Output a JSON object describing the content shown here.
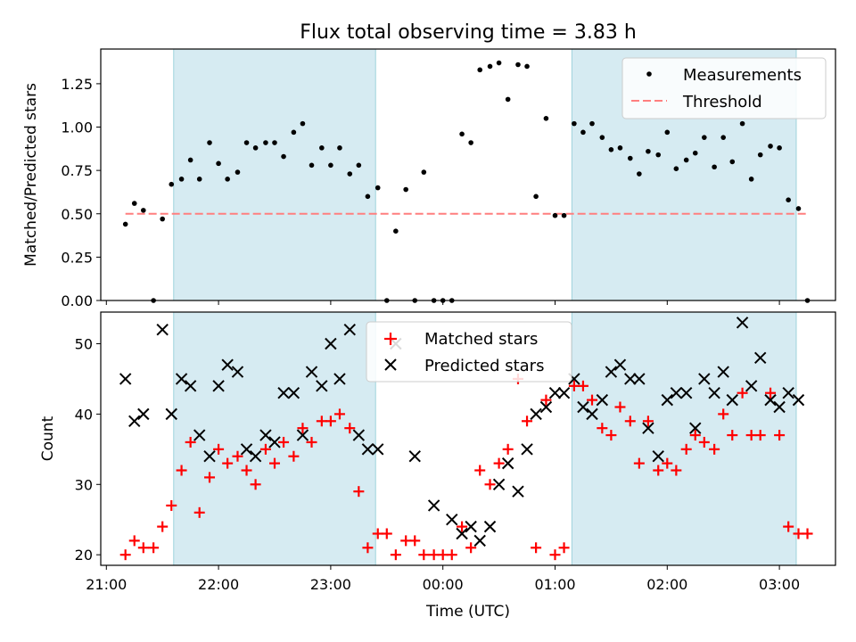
{
  "chart_data": [
    {
      "type": "scatter",
      "title": "Flux total observing time = 3.83 h",
      "xlabel": "",
      "ylabel": "Matched/Predicted stars",
      "ylim": [
        0,
        1.45
      ],
      "yticks": [
        "0.00",
        "0.25",
        "0.50",
        "0.75",
        "1.00",
        "1.25"
      ],
      "grid": false,
      "legend_position": "top-right",
      "shaded_ranges_hours": [
        [
          21.6,
          23.4
        ],
        [
          25.15,
          27.15
        ]
      ],
      "x": [
        21.17,
        21.25,
        21.33,
        21.42,
        21.5,
        21.58,
        21.67,
        21.75,
        21.83,
        21.92,
        22.0,
        22.08,
        22.17,
        22.25,
        22.33,
        22.42,
        22.5,
        22.58,
        22.67,
        22.75,
        22.83,
        22.92,
        23.0,
        23.08,
        23.17,
        23.25,
        23.33,
        23.42,
        23.5,
        23.58,
        23.67,
        23.75,
        23.83,
        23.92,
        24.0,
        24.08,
        24.17,
        24.25,
        24.33,
        24.42,
        24.5,
        24.58,
        24.67,
        24.75,
        24.83,
        24.92,
        25.0,
        25.08,
        25.17,
        25.25,
        25.33,
        25.42,
        25.5,
        25.58,
        25.67,
        25.75,
        25.83,
        25.92,
        26.0,
        26.08,
        26.17,
        26.25,
        26.33,
        26.42,
        26.5,
        26.58,
        26.67,
        26.75,
        26.83,
        26.92,
        27.0,
        27.08,
        27.17,
        27.25
      ],
      "series": [
        {
          "name": "Measurements",
          "color": "#000000",
          "marker": "dot",
          "values": [
            0.44,
            0.56,
            0.52,
            0.0,
            0.47,
            0.67,
            0.7,
            0.81,
            0.7,
            0.91,
            0.79,
            0.7,
            0.74,
            0.91,
            0.88,
            0.91,
            0.91,
            0.83,
            0.97,
            1.02,
            0.78,
            0.88,
            0.78,
            0.88,
            0.73,
            0.78,
            0.6,
            0.65,
            0.0,
            0.4,
            0.64,
            0.0,
            0.74,
            0.0,
            0.0,
            0.0,
            0.96,
            0.91,
            1.33,
            1.35,
            1.37,
            1.16,
            1.36,
            1.35,
            0.6,
            1.05,
            0.49,
            0.49,
            1.02,
            0.97,
            1.02,
            0.94,
            0.87,
            0.88,
            0.82,
            0.73,
            0.86,
            0.84,
            0.97,
            0.76,
            0.81,
            0.85,
            0.94,
            0.77,
            0.94,
            0.8,
            1.02,
            0.7,
            0.84,
            0.89,
            0.88,
            0.58,
            0.53,
            0.0
          ]
        }
      ],
      "threshold": {
        "name": "Threshold",
        "value": 0.5,
        "x_range": [
          21.17,
          27.25
        ],
        "color": "#ff7f7f"
      }
    },
    {
      "type": "scatter",
      "title": "",
      "xlabel": "Time (UTC)",
      "ylabel": "Count",
      "ylim": [
        18.5,
        54.5
      ],
      "yticks": [
        "20",
        "30",
        "40",
        "50"
      ],
      "xlim": [
        20.95,
        27.5
      ],
      "xticks": [
        "21:00",
        "22:00",
        "23:00",
        "00:00",
        "01:00",
        "02:00",
        "03:00"
      ],
      "grid": false,
      "legend_position": "top-center",
      "shaded_ranges_hours": [
        [
          21.6,
          23.4
        ],
        [
          25.15,
          27.15
        ]
      ],
      "series": [
        {
          "name": "Matched stars",
          "color": "#ff0000",
          "marker": "plus",
          "x": [
            21.17,
            21.25,
            21.33,
            21.42,
            21.5,
            21.58,
            21.67,
            21.75,
            21.83,
            21.92,
            22.0,
            22.08,
            22.17,
            22.25,
            22.33,
            22.42,
            22.5,
            22.58,
            22.67,
            22.75,
            22.83,
            22.92,
            23.0,
            23.08,
            23.17,
            23.25,
            23.33,
            23.42,
            23.5,
            23.58,
            23.67,
            23.75,
            23.83,
            23.92,
            24.0,
            24.08,
            24.17,
            24.25,
            24.33,
            24.42,
            24.5,
            24.58,
            24.67,
            24.75,
            24.83,
            24.92,
            25.0,
            25.08,
            25.17,
            25.25,
            25.33,
            25.42,
            25.5,
            25.58,
            25.67,
            25.75,
            25.83,
            25.92,
            26.0,
            26.08,
            26.17,
            26.25,
            26.33,
            26.42,
            26.5,
            26.58,
            26.67,
            26.75,
            26.83,
            26.92,
            27.0,
            27.08,
            27.17,
            27.25
          ],
          "values": [
            20,
            22,
            21,
            21,
            24,
            27,
            32,
            36,
            26,
            31,
            35,
            33,
            34,
            32,
            30,
            35,
            33,
            36,
            34,
            38,
            36,
            39,
            39,
            40,
            38,
            29,
            21,
            23,
            23,
            20,
            22,
            22,
            20,
            20,
            20,
            20,
            24,
            21,
            32,
            30,
            33,
            35,
            45,
            39,
            21,
            42,
            20,
            21,
            44,
            44,
            42,
            38,
            37,
            41,
            39,
            33,
            39,
            32,
            33,
            32,
            35,
            37,
            36,
            35,
            40,
            37,
            43,
            37,
            37,
            43,
            37,
            24,
            23,
            23
          ]
        },
        {
          "name": "Predicted stars",
          "color": "#000000",
          "marker": "x",
          "x": [
            21.17,
            21.25,
            21.33,
            21.5,
            21.58,
            21.67,
            21.75,
            21.83,
            21.92,
            22.0,
            22.08,
            22.17,
            22.25,
            22.33,
            22.42,
            22.5,
            22.58,
            22.67,
            22.75,
            22.83,
            22.92,
            23.0,
            23.08,
            23.17,
            23.25,
            23.33,
            23.42,
            23.58,
            23.75,
            23.92,
            24.08,
            24.17,
            24.25,
            24.33,
            24.42,
            24.5,
            24.58,
            24.67,
            24.75,
            24.83,
            24.92,
            25.0,
            25.08,
            25.17,
            25.25,
            25.33,
            25.42,
            25.5,
            25.58,
            25.67,
            25.75,
            25.83,
            25.92,
            26.0,
            26.08,
            26.17,
            26.25,
            26.33,
            26.42,
            26.5,
            26.58,
            26.67,
            26.75,
            26.83,
            26.92,
            27.0,
            27.08,
            27.17
          ],
          "values": [
            45,
            39,
            40,
            52,
            40,
            45,
            44,
            37,
            34,
            44,
            47,
            46,
            35,
            34,
            37,
            36,
            43,
            43,
            37,
            46,
            44,
            50,
            45,
            52,
            37,
            35,
            35,
            50,
            34,
            27,
            25,
            23,
            24,
            22,
            24,
            30,
            33,
            29,
            35,
            40,
            41,
            43,
            43,
            45,
            41,
            40,
            42,
            46,
            47,
            45,
            45,
            38,
            34,
            42,
            43,
            43,
            38,
            45,
            43,
            46,
            42,
            53,
            44,
            48,
            42,
            41,
            43,
            42
          ]
        }
      ]
    }
  ]
}
